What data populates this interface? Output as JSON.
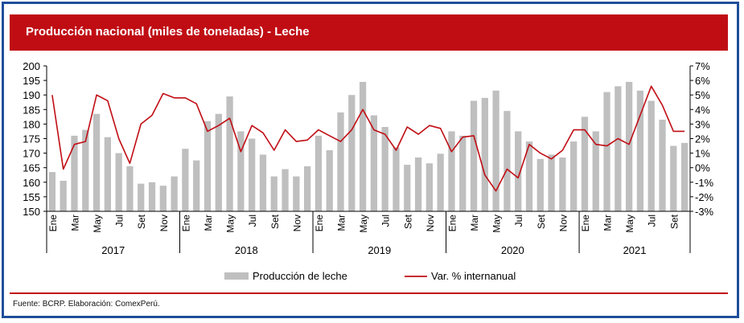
{
  "title": "Producción nacional (miles de toneladas) - Leche",
  "source": "Fuente: BCRP. Elaboración: ComexPerú.",
  "colors": {
    "accent": "#c00d14",
    "bars": "#bfbfbf",
    "line": "#c00d14",
    "border": "#1f4e9a"
  },
  "chart_data": {
    "type": "bar",
    "years": [
      "2017",
      "2018",
      "2019",
      "2020",
      "2021"
    ],
    "month_tick_labels": [
      "Ene",
      "Mar",
      "May",
      "Jul",
      "Set",
      "Nov"
    ],
    "last_year_tick_labels": [
      "Ene",
      "Mar",
      "May",
      "Jul",
      "Set"
    ],
    "y_left": {
      "ylim": [
        150,
        200
      ],
      "ticks": [
        150,
        155,
        160,
        165,
        170,
        175,
        180,
        185,
        190,
        195,
        200
      ]
    },
    "y_right": {
      "ylim": [
        -3,
        7
      ],
      "ticks": [
        "-3%",
        "-2%",
        "-1%",
        "0%",
        "1%",
        "2%",
        "3%",
        "4%",
        "5%",
        "6%",
        "7%"
      ]
    },
    "legend": [
      "Producción de leche",
      "Var. % internanual"
    ],
    "series": [
      {
        "name": "Producción de leche",
        "type": "bar",
        "values": [
          163.5,
          160.5,
          176,
          178,
          183.5,
          175.5,
          170,
          165.5,
          159.5,
          160,
          158.8,
          162,
          171.5,
          167.5,
          181,
          183.5,
          189.5,
          177.5,
          175,
          169.5,
          162,
          164.5,
          162,
          165.5,
          176,
          171,
          184,
          190,
          194.5,
          183,
          179,
          172,
          166,
          168.5,
          166.5,
          169.8,
          177.5,
          176,
          188,
          189,
          191.5,
          184.5,
          177.5,
          174,
          168,
          169.5,
          168.5,
          174,
          182.5,
          177.5,
          191,
          193,
          194.5,
          191.5,
          188,
          181.5,
          172.5,
          173.5
        ]
      },
      {
        "name": "Var. % internanual",
        "type": "line",
        "values": [
          5.0,
          -0.1,
          1.6,
          1.8,
          5.0,
          4.6,
          2.0,
          0.3,
          3.0,
          3.6,
          5.1,
          4.8,
          4.8,
          4.4,
          2.5,
          2.9,
          3.4,
          1.1,
          2.9,
          2.4,
          1.2,
          2.6,
          1.8,
          1.9,
          2.6,
          2.2,
          1.8,
          2.6,
          4.0,
          2.6,
          2.3,
          1.2,
          2.8,
          2.3,
          2.9,
          2.7,
          1.1,
          2.1,
          2.2,
          -0.5,
          -1.6,
          -0.1,
          -0.7,
          1.6,
          1.0,
          0.6,
          1.2,
          2.6,
          2.6,
          1.6,
          1.5,
          2.0,
          1.6,
          3.6,
          5.6,
          4.3,
          2.5,
          2.5
        ]
      }
    ]
  }
}
